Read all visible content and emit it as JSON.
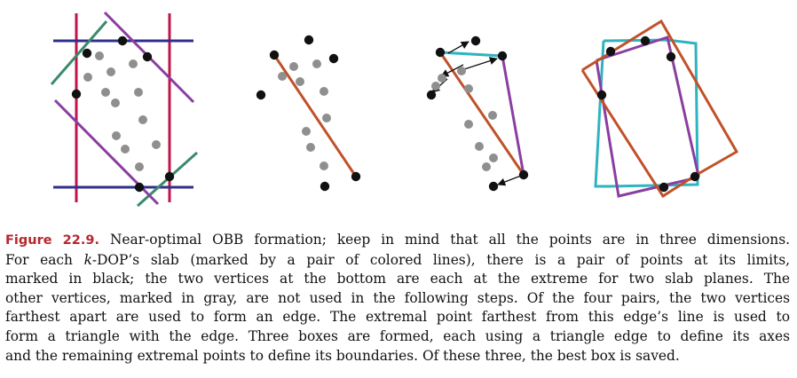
{
  "figure": {
    "label": "Figure 22.9.",
    "caption_lines": [
      "Near-optimal OBB formation; keep in mind that all the points are in three dimensions.",
      "For each §k§-DOP’s slab (marked by a pair of colored lines), there is a pair of points at its limits,",
      "marked in black; the two vertices at the bottom are each at the extreme for two slab planes.  The",
      "other vertices, marked in gray, are not used in the following steps.  Of the four pairs, the two vertices",
      "farthest apart are used to form an edge.  The extremal point farthest from this edge’s line is used to",
      "form a triangle with the edge.  Three boxes are formed, each using a triangle edge to define its axes",
      "and the remaining extremal points to define its boundaries.  Of these three, the best box is saved."
    ]
  },
  "colors": {
    "crimson": "#c0144a",
    "navy": "#2f2f8c",
    "teal": "#3a8a6c",
    "purple": "#8a3fa0",
    "orange": "#c0522a",
    "cyan": "#2fb4bf",
    "black": "#111111",
    "gray": "#8f8f8f"
  },
  "panels": [
    {
      "name": "kdop-slabs",
      "lines": [
        {
          "c": "crimson",
          "p": [
            [
              86,
              15
            ],
            [
              86,
              228
            ]
          ]
        },
        {
          "c": "crimson",
          "p": [
            [
              191,
              15
            ],
            [
              191,
              228
            ]
          ]
        },
        {
          "c": "navy",
          "p": [
            [
              60,
              46
            ],
            [
              218,
              46
            ]
          ]
        },
        {
          "c": "navy",
          "p": [
            [
              60,
              211
            ],
            [
              218,
              211
            ]
          ]
        },
        {
          "c": "teal",
          "p": [
            [
              58,
              95
            ],
            [
              120,
              24
            ]
          ]
        },
        {
          "c": "teal",
          "p": [
            [
              155,
              232
            ],
            [
              222,
              172
            ]
          ]
        },
        {
          "c": "purple",
          "p": [
            [
              118,
              14
            ],
            [
              218,
              115
            ]
          ]
        },
        {
          "c": "purple",
          "p": [
            [
              62,
              113
            ],
            [
              178,
              230
            ]
          ]
        }
      ],
      "black": [
        [
          138,
          46
        ],
        [
          98,
          60
        ],
        [
          166,
          64
        ],
        [
          86,
          106
        ],
        [
          191,
          199
        ],
        [
          157,
          211
        ]
      ],
      "gray": [
        [
          112,
          63
        ],
        [
          150,
          72
        ],
        [
          99,
          87
        ],
        [
          125,
          81
        ],
        [
          119,
          104
        ],
        [
          156,
          104
        ],
        [
          130,
          116
        ],
        [
          161,
          135
        ],
        [
          131,
          153
        ],
        [
          176,
          163
        ],
        [
          141,
          168
        ],
        [
          157,
          188
        ]
      ]
    },
    {
      "name": "edge",
      "lines": [
        {
          "c": "orange",
          "p": [
            [
              309,
              62
            ],
            [
              401,
              199
            ]
          ]
        }
      ],
      "black": [
        [
          348,
          45
        ],
        [
          376,
          66
        ],
        [
          309,
          62
        ],
        [
          294,
          107
        ],
        [
          401,
          199
        ],
        [
          366,
          210
        ]
      ],
      "gray": [
        [
          331,
          75
        ],
        [
          318,
          86
        ],
        [
          357,
          72
        ],
        [
          338,
          92
        ],
        [
          365,
          103
        ],
        [
          368,
          133
        ],
        [
          345,
          148
        ],
        [
          350,
          166
        ],
        [
          365,
          187
        ]
      ]
    },
    {
      "name": "triangle",
      "lines": [
        {
          "c": "cyan",
          "p": [
            [
              496,
              59
            ],
            [
              566,
              63
            ]
          ]
        },
        {
          "c": "orange",
          "p": [
            [
              496,
              59
            ],
            [
              590,
              197
            ]
          ]
        },
        {
          "c": "purple",
          "p": [
            [
              566,
              63
            ],
            [
              590,
              197
            ]
          ]
        }
      ],
      "arrows": [
        {
          "p": [
            [
              505,
              60
            ],
            [
              528,
              47
            ]
          ]
        },
        {
          "p": [
            [
              522,
              73
            ],
            [
              497,
              86
            ]
          ]
        },
        {
          "p": [
            [
              520,
              79
            ],
            [
              560,
              66
            ]
          ]
        },
        {
          "p": [
            [
              504,
              89
            ],
            [
              487,
              104
            ]
          ]
        },
        {
          "p": [
            [
              587,
              198
            ],
            [
              561,
              208
            ]
          ]
        }
      ],
      "black": [
        [
          536,
          46
        ],
        [
          496,
          59
        ],
        [
          566,
          63
        ],
        [
          486,
          107
        ],
        [
          590,
          197
        ],
        [
          556,
          210
        ]
      ],
      "gray": [
        [
          498,
          88
        ],
        [
          491,
          97
        ],
        [
          520,
          80
        ],
        [
          528,
          100
        ],
        [
          555,
          130
        ],
        [
          528,
          140
        ],
        [
          540,
          165
        ],
        [
          556,
          178
        ],
        [
          548,
          188
        ]
      ]
    },
    {
      "name": "three-boxes",
      "lines": [
        {
          "c": "cyan",
          "p": [
            [
              680,
              46
            ],
            [
              752,
              45
            ],
            [
              784,
              49
            ],
            [
              786,
              208
            ],
            [
              686,
              210
            ],
            [
              671,
              210
            ],
            [
              680,
              46
            ]
          ]
        },
        {
          "c": "purple",
          "p": [
            [
              672,
              68
            ],
            [
              752,
              42
            ],
            [
              787,
              198
            ],
            [
              782,
              201
            ],
            [
              697,
              221
            ],
            [
              672,
              68
            ]
          ]
        },
        {
          "c": "orange",
          "p": [
            [
              656,
              79
            ],
            [
              745,
              24
            ],
            [
              830,
              171
            ],
            [
              783,
              198
            ],
            [
              747,
              221
            ],
            [
              656,
              79
            ]
          ]
        }
      ],
      "black": [
        [
          727,
          46
        ],
        [
          688,
          58
        ],
        [
          756,
          64
        ],
        [
          678,
          107
        ],
        [
          783,
          199
        ],
        [
          748,
          211
        ]
      ],
      "gray": []
    }
  ]
}
